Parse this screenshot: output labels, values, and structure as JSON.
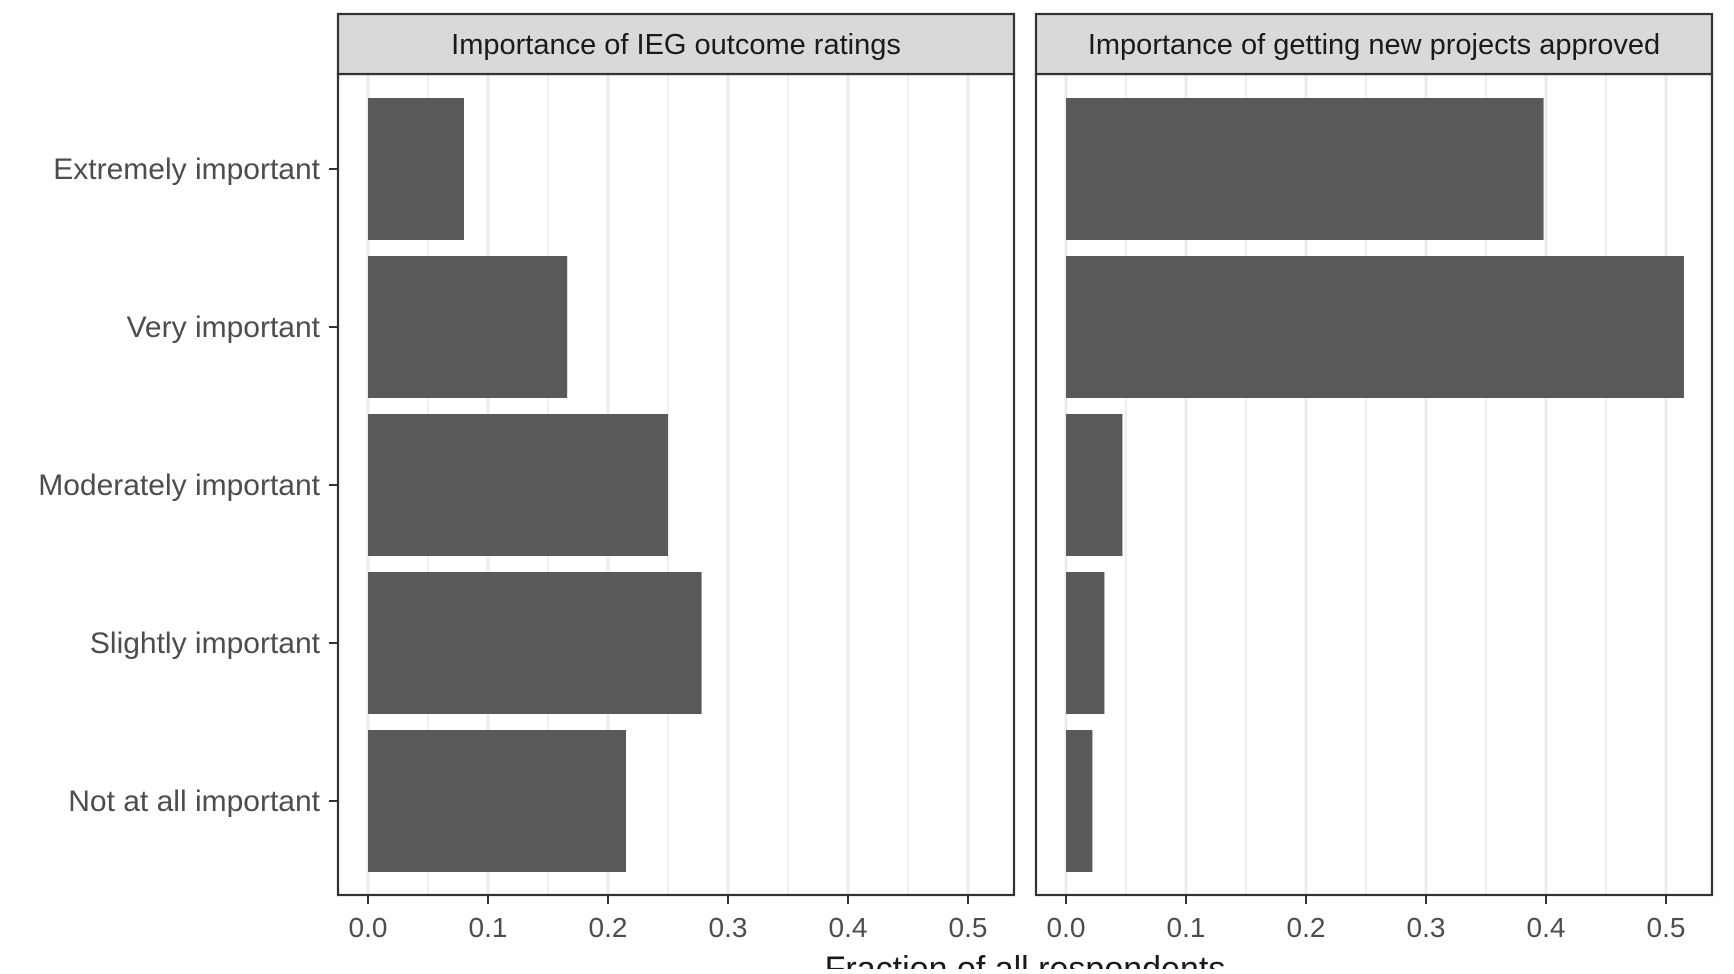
{
  "chart_data": {
    "type": "bar",
    "orientation": "horizontal",
    "xlabel": "Fraction of all respondents",
    "ylabel": "",
    "categories": [
      "Extremely important",
      "Very important",
      "Moderately important",
      "Slightly important",
      "Not at all important"
    ],
    "xlim": [
      0,
      0.55
    ],
    "xticks": [
      "0.0",
      "0.1",
      "0.2",
      "0.3",
      "0.4",
      "0.5"
    ],
    "grid": true,
    "legend": "none",
    "panels": [
      {
        "title": "Importance of IEG outcome ratings",
        "values": [
          0.08,
          0.166,
          0.25,
          0.278,
          0.215
        ]
      },
      {
        "title": "Importance of getting new projects approved",
        "values": [
          0.398,
          0.515,
          0.047,
          0.032,
          0.022
        ]
      }
    ],
    "colors": {
      "bar": "#595959",
      "strip": "#d9d9d9",
      "grid": "#ebebeb",
      "frame": "#333333",
      "text": "#4d4d4d",
      "title_text": "#1a1a1a"
    }
  }
}
